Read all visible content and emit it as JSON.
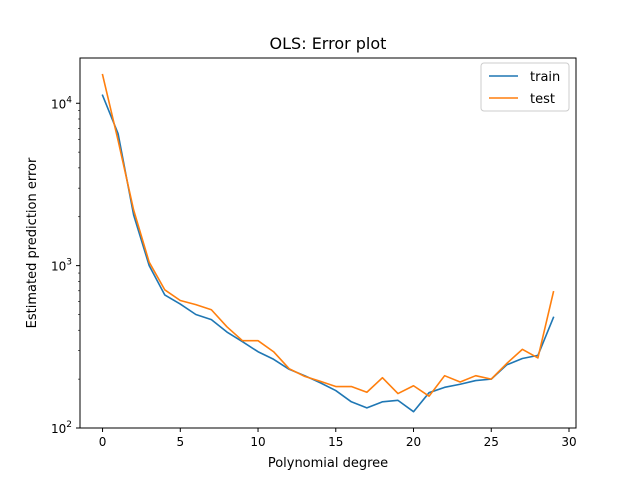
{
  "chart_data": {
    "type": "line",
    "title": "OLS: Error plot",
    "xlabel": "Polynomial degree",
    "ylabel": "Estimated prediction error",
    "yscale": "log",
    "xlim": [
      -1.45,
      30.45
    ],
    "ylim": [
      100,
      19000
    ],
    "x_ticks": [
      0,
      5,
      10,
      15,
      20,
      25,
      30
    ],
    "y_ticks": [
      {
        "value": 100,
        "base": "10",
        "exp": "2"
      },
      {
        "value": 1000,
        "base": "10",
        "exp": "3"
      },
      {
        "value": 10000,
        "base": "10",
        "exp": "4"
      }
    ],
    "grid": false,
    "legend_position": "top-right",
    "x": [
      0,
      1,
      2,
      3,
      4,
      5,
      6,
      7,
      8,
      9,
      10,
      11,
      12,
      13,
      14,
      15,
      16,
      17,
      18,
      19,
      20,
      21,
      22,
      23,
      24,
      25,
      26,
      27,
      28,
      29
    ],
    "series": [
      {
        "name": "train",
        "color": "#1f77b4",
        "values": [
          11200,
          6500,
          2050,
          1000,
          660,
          580,
          500,
          465,
          390,
          340,
          295,
          265,
          230,
          210,
          190,
          170,
          145,
          133,
          145,
          148,
          126,
          165,
          178,
          186,
          196,
          200,
          245,
          268,
          280,
          480
        ]
      },
      {
        "name": "test",
        "color": "#ff7f0e",
        "values": [
          15000,
          5900,
          2200,
          1050,
          710,
          610,
          575,
          535,
          420,
          345,
          345,
          295,
          232,
          208,
          194,
          180,
          180,
          166,
          204,
          163,
          182,
          157,
          210,
          192,
          210,
          200,
          250,
          305,
          270,
          690
        ]
      }
    ]
  }
}
